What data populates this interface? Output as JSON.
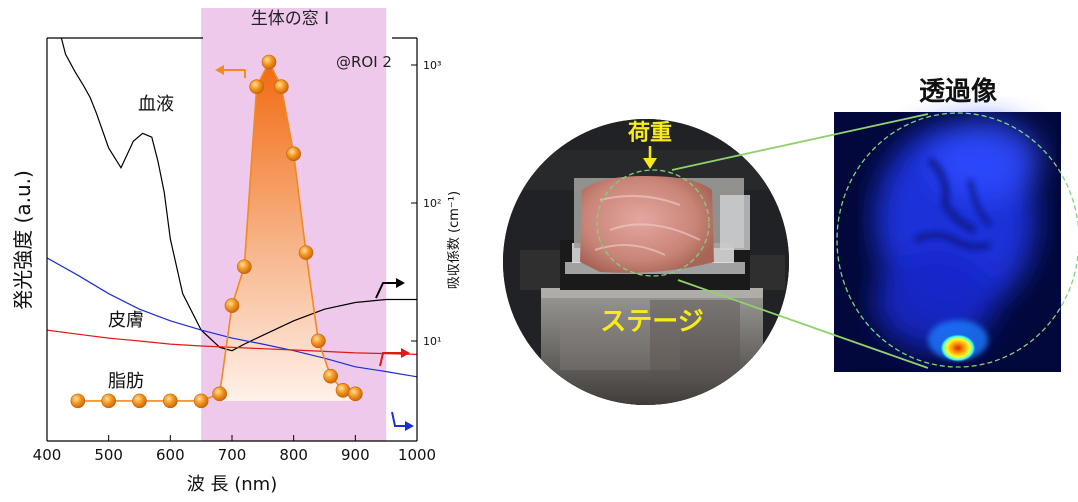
{
  "window_label": "生体の窓 I",
  "roi_label": "@ROI 2",
  "y_left_label": "発光強度 (a.u.)",
  "y_right_label": "吸収係数 (cm⁻¹)",
  "x_label": "波 長 (nm)",
  "x_ticks": [
    "400",
    "500",
    "600",
    "700",
    "800",
    "900",
    "1000"
  ],
  "y_right_ticks": [
    "10³",
    "10²",
    "10¹"
  ],
  "curve_labels": {
    "blood": "血液",
    "skin": "皮膚",
    "fat": "脂肪"
  },
  "photo_labels": {
    "load": "荷重",
    "stage": "ステージ",
    "transmission": "透過像"
  },
  "colors": {
    "window_band": "#efc9ec",
    "emission": "#f28a1f",
    "blood": "#000000",
    "skin": "#1a2ed6",
    "fat": "#e01818",
    "annotation_yellow": "#f7ec1a",
    "connector": "#8fd16a"
  },
  "chart_data": {
    "type": "line",
    "xlim": [
      400,
      1000
    ],
    "window_range": [
      650,
      950
    ],
    "emission": {
      "x": [
        450,
        500,
        550,
        600,
        650,
        680,
        700,
        720,
        740,
        760,
        780,
        800,
        820,
        840,
        860,
        880,
        900
      ],
      "y": [
        0.04,
        0.04,
        0.04,
        0.04,
        0.04,
        0.06,
        0.31,
        0.42,
        0.93,
        1.0,
        0.93,
        0.74,
        0.46,
        0.21,
        0.11,
        0.07,
        0.06
      ]
    },
    "blood": {
      "x": [
        400,
        410,
        420,
        430,
        445,
        460,
        470,
        480,
        500,
        520,
        540,
        555,
        570,
        580,
        590,
        600,
        620,
        650,
        680,
        700,
        720,
        750,
        800,
        850,
        900,
        950,
        1000
      ],
      "y": [
        2000,
        2200,
        1800,
        1200,
        900,
        700,
        580,
        450,
        250,
        180,
        280,
        320,
        300,
        200,
        120,
        55,
        22,
        12,
        9,
        8.5,
        9.5,
        11,
        14,
        17,
        19,
        20,
        20
      ]
    },
    "skin": {
      "x": [
        400,
        450,
        500,
        550,
        600,
        650,
        700,
        750,
        800,
        850,
        900,
        950,
        1000
      ],
      "y": [
        40,
        30,
        22,
        17,
        14,
        12,
        10.5,
        9.5,
        8.5,
        7.5,
        6.5,
        6,
        5.5
      ]
    },
    "fat": {
      "x": [
        400,
        450,
        500,
        550,
        600,
        650,
        700,
        750,
        800,
        850,
        900,
        950,
        1000
      ],
      "y": [
        12,
        11.2,
        10.5,
        10,
        9.5,
        9.2,
        9,
        8.8,
        8.6,
        8.4,
        8.2,
        8.1,
        8
      ]
    }
  }
}
